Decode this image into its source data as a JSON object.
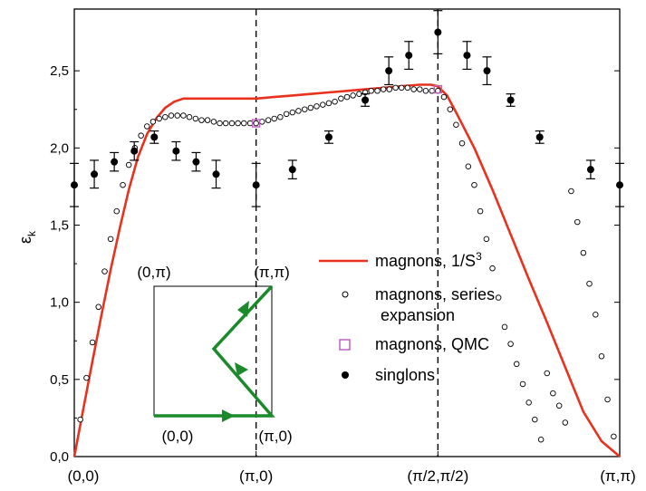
{
  "chart_data": {
    "type": "line",
    "ylabel": "εk",
    "ylim": [
      0,
      2.9
    ],
    "x_positions": [
      0,
      1,
      2,
      3
    ],
    "x_tick_labels": [
      "(0,0)",
      "(π,0)",
      "(π/2,π/2)",
      "(π,π)"
    ],
    "y_ticks": [
      0,
      0.5,
      1.0,
      1.5,
      2.0,
      2.5
    ],
    "y_tick_labels": [
      "0,0",
      "0,5",
      "1,0",
      "1,5",
      "2,0",
      "2,5"
    ],
    "vertical_dashed_lines": [
      1,
      2
    ],
    "legend_position": "middle-right",
    "series": [
      {
        "name": "magnons, 1/S³",
        "style": "line",
        "color": "#e8321e",
        "x": [
          0,
          0.05,
          0.1,
          0.15,
          0.2,
          0.25,
          0.3,
          0.35,
          0.4,
          0.45,
          0.5,
          0.55,
          0.6,
          0.65,
          0.7,
          0.75,
          0.8,
          0.9,
          1.0,
          1.1,
          1.2,
          1.3,
          1.4,
          1.5,
          1.6,
          1.7,
          1.8,
          1.9,
          1.96,
          2.0,
          2.05,
          2.1,
          2.2,
          2.3,
          2.4,
          2.5,
          2.6,
          2.7,
          2.8,
          2.9,
          3.0
        ],
        "y": [
          0,
          0.31,
          0.62,
          0.92,
          1.21,
          1.48,
          1.73,
          1.94,
          2.09,
          2.19,
          2.26,
          2.3,
          2.32,
          2.32,
          2.32,
          2.32,
          2.32,
          2.32,
          2.32,
          2.33,
          2.34,
          2.35,
          2.36,
          2.37,
          2.38,
          2.39,
          2.4,
          2.41,
          2.41,
          2.4,
          2.34,
          2.23,
          2.0,
          1.73,
          1.44,
          1.15,
          0.87,
          0.58,
          0.29,
          0.1,
          0
        ]
      },
      {
        "name": "magnons, series expansion",
        "style": "open-circle",
        "x": [
          0.033,
          0.067,
          0.1,
          0.133,
          0.167,
          0.2,
          0.233,
          0.267,
          0.3,
          0.333,
          0.367,
          0.4,
          0.433,
          0.467,
          0.5,
          0.533,
          0.567,
          0.6,
          0.633,
          0.667,
          0.7,
          0.733,
          0.767,
          0.8,
          0.833,
          0.867,
          0.9,
          0.933,
          0.967,
          1.0,
          1.033,
          1.067,
          1.1,
          1.133,
          1.167,
          1.2,
          1.233,
          1.267,
          1.3,
          1.333,
          1.367,
          1.4,
          1.433,
          1.467,
          1.5,
          1.533,
          1.567,
          1.6,
          1.633,
          1.667,
          1.7,
          1.733,
          1.767,
          1.8,
          1.833,
          1.867,
          1.9,
          1.933,
          1.967,
          2.0,
          2.033,
          2.067,
          2.1,
          2.133,
          2.167,
          2.2,
          2.233,
          2.267,
          2.3,
          2.333,
          2.367,
          2.4,
          2.433,
          2.467,
          2.5,
          2.533,
          2.567,
          2.6,
          2.633,
          2.667,
          2.7,
          2.733,
          2.767,
          2.8,
          2.833,
          2.867,
          2.9,
          2.933,
          2.967
        ],
        "y": [
          0.24,
          0.51,
          0.74,
          0.97,
          1.2,
          1.41,
          1.59,
          1.76,
          1.89,
          2.0,
          2.08,
          2.14,
          2.17,
          2.19,
          2.2,
          2.21,
          2.21,
          2.21,
          2.2,
          2.19,
          2.18,
          2.18,
          2.17,
          2.16,
          2.16,
          2.16,
          2.16,
          2.16,
          2.16,
          2.16,
          2.17,
          2.18,
          2.19,
          2.2,
          2.22,
          2.23,
          2.24,
          2.25,
          2.26,
          2.27,
          2.28,
          2.29,
          2.3,
          2.32,
          2.33,
          2.34,
          2.35,
          2.36,
          2.37,
          2.37,
          2.38,
          2.38,
          2.39,
          2.39,
          2.39,
          2.38,
          2.38,
          2.37,
          2.37,
          2.37,
          2.33,
          2.25,
          2.15,
          2.03,
          1.88,
          1.76,
          1.59,
          1.41,
          1.22,
          1.03,
          0.84,
          0.73,
          0.6,
          0.47,
          0.35,
          0.24,
          0.11,
          0.54,
          0.41,
          0.33,
          0.22,
          1.72,
          1.52,
          1.32,
          1.12,
          0.92,
          0.65,
          0.37,
          0.13
        ]
      },
      {
        "name": "magnons, QMC",
        "style": "open-square",
        "color": "#c060c0",
        "x": [
          1.0,
          2.0
        ],
        "y": [
          2.16,
          2.38
        ]
      },
      {
        "name": "singlons",
        "style": "filled-circle-errorbar",
        "x": [
          0,
          0.11,
          0.22,
          0.33,
          0.44,
          0.56,
          0.67,
          0.78,
          1.0,
          1.2,
          1.4,
          1.6,
          1.73,
          1.84,
          2.0,
          2.16,
          2.27,
          2.4,
          2.56,
          2.84,
          3.0
        ],
        "y": [
          1.76,
          1.83,
          1.91,
          1.98,
          2.07,
          1.98,
          1.91,
          1.83,
          1.76,
          1.86,
          2.07,
          2.31,
          2.5,
          2.6,
          2.75,
          2.6,
          2.5,
          2.31,
          2.07,
          1.86,
          1.76
        ],
        "err": [
          0.14,
          0.09,
          0.06,
          0.06,
          0.04,
          0.06,
          0.06,
          0.09,
          0.14,
          0.06,
          0.04,
          0.04,
          0.09,
          0.09,
          0.14,
          0.09,
          0.09,
          0.04,
          0.04,
          0.06,
          0.14
        ]
      }
    ],
    "inset": {
      "corner_labels": [
        "(0,π)",
        "(π,π)",
        "(0,0)",
        "(π,0)"
      ],
      "path_color": "#1a8a2a"
    }
  }
}
